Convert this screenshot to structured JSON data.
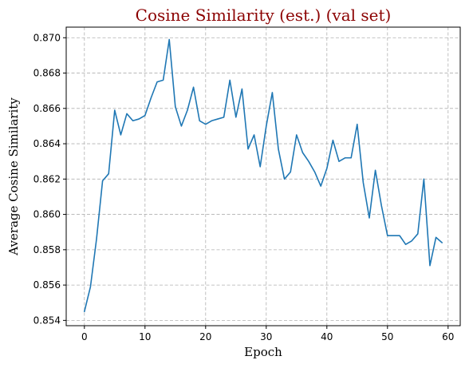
{
  "chart_data": {
    "type": "line",
    "title": "Cosine Similarity (est.) (val set)",
    "xlabel": "Epoch",
    "ylabel": "Average Cosine Similarity",
    "xlim": [
      -3,
      62
    ],
    "ylim": [
      0.8537,
      0.8706
    ],
    "xticks": [
      0,
      10,
      20,
      30,
      40,
      50,
      60
    ],
    "yticks": [
      0.854,
      0.856,
      0.858,
      0.86,
      0.862,
      0.864,
      0.866,
      0.868,
      0.87
    ],
    "ytick_labels": [
      "0.854",
      "0.856",
      "0.858",
      "0.860",
      "0.862",
      "0.864",
      "0.866",
      "0.868",
      "0.870"
    ],
    "grid": true,
    "series": [
      {
        "color": "#1f77b4",
        "x": [
          0,
          1,
          2,
          3,
          4,
          5,
          6,
          7,
          8,
          9,
          10,
          11,
          12,
          13,
          14,
          15,
          16,
          17,
          18,
          19,
          20,
          21,
          22,
          23,
          24,
          25,
          26,
          27,
          28,
          29,
          30,
          31,
          32,
          33,
          34,
          35,
          36,
          37,
          38,
          39,
          40,
          41,
          42,
          43,
          44,
          45,
          46,
          47,
          48,
          49,
          50,
          51,
          52,
          53,
          54,
          55,
          56,
          57,
          58,
          59
        ],
        "values": [
          0.8545,
          0.8559,
          0.8586,
          0.8619,
          0.8623,
          0.8659,
          0.8645,
          0.8657,
          0.8653,
          0.8654,
          0.8656,
          0.8666,
          0.8675,
          0.8676,
          0.8699,
          0.8661,
          0.865,
          0.8659,
          0.8672,
          0.8653,
          0.8651,
          0.8653,
          0.8654,
          0.8655,
          0.8676,
          0.8655,
          0.8671,
          0.8637,
          0.8645,
          0.8627,
          0.865,
          0.8669,
          0.8637,
          0.862,
          0.8624,
          0.8645,
          0.8635,
          0.863,
          0.8624,
          0.8616,
          0.8626,
          0.8642,
          0.863,
          0.8632,
          0.8632,
          0.8651,
          0.8618,
          0.8598,
          0.8625,
          0.8605,
          0.8588,
          0.8588,
          0.8588,
          0.8583,
          0.8585,
          0.8589,
          0.862,
          0.8571,
          0.8587,
          0.8584
        ]
      }
    ]
  }
}
